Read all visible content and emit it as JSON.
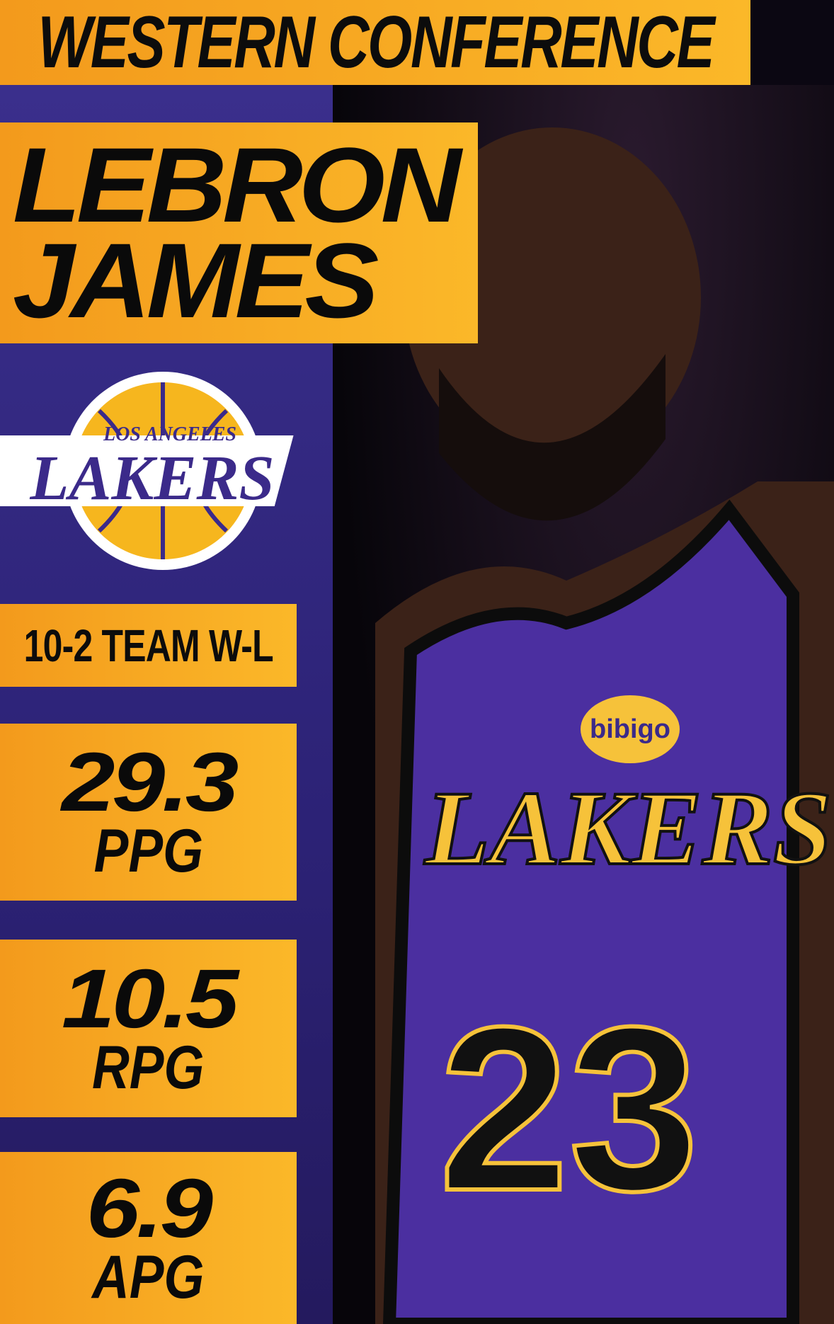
{
  "header": {
    "conference": "WESTERN CONFERENCE"
  },
  "player": {
    "first_name": "LEBRON",
    "last_name": "JAMES",
    "jersey_number": "23",
    "jersey_text": "LAKERS",
    "sponsor": "bibigo"
  },
  "team": {
    "logo_text_top": "LOS ANGELES",
    "logo_text_main": "LAKERS"
  },
  "record": {
    "text": "10-2 TEAM W-L"
  },
  "stats": [
    {
      "value": "29.3",
      "label": "PPG"
    },
    {
      "value": "10.5",
      "label": "RPG"
    },
    {
      "value": "6.9",
      "label": "APG"
    }
  ],
  "colors": {
    "gold": "#fbb829",
    "purple": "#3a2f8c",
    "black": "#0a0a0a"
  }
}
